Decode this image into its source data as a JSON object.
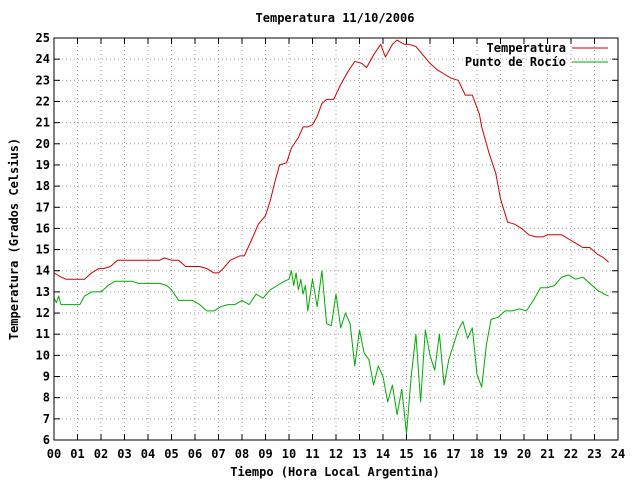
{
  "chart_data": {
    "type": "line",
    "title": "Temperatura 11/10/2006",
    "xlabel": "Tiempo (Hora Local Argentina)",
    "ylabel": "Temperatura (Grados Celsius)",
    "xlim": [
      0,
      24
    ],
    "ylim": [
      6,
      25
    ],
    "xticks": [
      0,
      1,
      2,
      3,
      4,
      5,
      6,
      7,
      8,
      9,
      10,
      11,
      12,
      13,
      14,
      15,
      16,
      17,
      18,
      19,
      20,
      21,
      22,
      23,
      24
    ],
    "xtick_labels": [
      "00",
      "01",
      "02",
      "03",
      "04",
      "05",
      "06",
      "07",
      "08",
      "09",
      "10",
      "11",
      "12",
      "13",
      "14",
      "15",
      "16",
      "17",
      "18",
      "19",
      "20",
      "21",
      "22",
      "23",
      "24"
    ],
    "yticks": [
      6,
      7,
      8,
      9,
      10,
      11,
      12,
      13,
      14,
      15,
      16,
      17,
      18,
      19,
      20,
      21,
      22,
      23,
      24,
      25
    ],
    "ytick_labels": [
      "6",
      "7",
      "8",
      "9",
      "10",
      "11",
      "12",
      "13",
      "14",
      "15",
      "16",
      "17",
      "18",
      "19",
      "20",
      "21",
      "22",
      "23",
      "24",
      "25"
    ],
    "grid": true,
    "legend_position": "top-right",
    "series": [
      {
        "name": "Temperatura",
        "color": "#cc0000",
        "x": [
          0,
          0.15,
          0.3,
          0.5,
          0.8,
          1.1,
          1.3,
          1.6,
          1.9,
          2.1,
          2.4,
          2.7,
          3,
          3.3,
          3.6,
          3.9,
          4.2,
          4.5,
          4.7,
          5,
          5.3,
          5.6,
          5.9,
          6.2,
          6.5,
          6.8,
          7,
          7.2,
          7.5,
          7.9,
          8.1,
          8.3,
          8.5,
          8.7,
          9,
          9.2,
          9.4,
          9.6,
          9.9,
          10.1,
          10.4,
          10.6,
          10.8,
          11,
          11.2,
          11.4,
          11.6,
          11.9,
          12.2,
          12.5,
          12.8,
          13.1,
          13.3,
          13.6,
          13.9,
          14.1,
          14.4,
          14.6,
          14.9,
          15.1,
          15.4,
          15.7,
          16,
          16.3,
          16.6,
          16.9,
          17.2,
          17.5,
          17.8,
          18.1,
          18.2,
          18.5,
          18.8,
          19,
          19.3,
          19.6,
          19.9,
          20.2,
          20.5,
          20.8,
          21,
          21.2,
          21.4,
          21.6,
          21.9,
          22.2,
          22.5,
          22.8,
          23.1,
          23.4,
          23.6
        ],
        "y": [
          13.9,
          13.8,
          13.7,
          13.6,
          13.6,
          13.6,
          13.6,
          13.9,
          14.1,
          14.1,
          14.2,
          14.5,
          14.5,
          14.5,
          14.5,
          14.5,
          14.5,
          14.5,
          14.6,
          14.5,
          14.5,
          14.2,
          14.2,
          14.2,
          14.1,
          13.9,
          13.9,
          14.1,
          14.5,
          14.7,
          14.7,
          15.2,
          15.7,
          16.2,
          16.6,
          17.3,
          18.2,
          19,
          19.1,
          19.8,
          20.3,
          20.8,
          20.8,
          20.9,
          21.3,
          21.9,
          22.1,
          22.1,
          22.8,
          23.4,
          23.9,
          23.8,
          23.6,
          24.2,
          24.7,
          24.1,
          24.7,
          24.9,
          24.7,
          24.7,
          24.6,
          24.2,
          23.8,
          23.5,
          23.3,
          23.1,
          23,
          22.3,
          22.3,
          21.4,
          20.8,
          19.6,
          18.6,
          17.4,
          16.3,
          16.2,
          16,
          15.7,
          15.6,
          15.6,
          15.7,
          15.7,
          15.7,
          15.7,
          15.5,
          15.3,
          15.1,
          15.1,
          14.8,
          14.6,
          14.4
        ]
      },
      {
        "name": "Punto de Rocío",
        "color": "#00aa00",
        "x": [
          0,
          0.1,
          0.2,
          0.3,
          0.5,
          0.8,
          1.1,
          1.3,
          1.6,
          2,
          2.3,
          2.6,
          3,
          3.3,
          3.6,
          3.9,
          4.2,
          4.5,
          4.8,
          5,
          5.3,
          5.6,
          5.9,
          6.2,
          6.5,
          6.8,
          7.1,
          7.4,
          7.7,
          8,
          8.3,
          8.6,
          8.9,
          9.2,
          9.5,
          9.8,
          10,
          10.1,
          10.2,
          10.3,
          10.4,
          10.5,
          10.6,
          10.7,
          10.8,
          11,
          11.2,
          11.4,
          11.6,
          11.8,
          12,
          12.2,
          12.4,
          12.6,
          12.8,
          13,
          13.2,
          13.4,
          13.6,
          13.8,
          14,
          14.2,
          14.4,
          14.6,
          14.8,
          15,
          15.2,
          15.4,
          15.6,
          15.8,
          16,
          16.2,
          16.4,
          16.6,
          16.8,
          17,
          17.2,
          17.4,
          17.6,
          17.8,
          18,
          18.2,
          18.4,
          18.6,
          18.9,
          19.2,
          19.5,
          19.8,
          20.1,
          20.4,
          20.7,
          21,
          21.3,
          21.6,
          21.9,
          22.2,
          22.5,
          22.8,
          23.1,
          23.4,
          23.6
        ],
        "y": [
          12.7,
          12.5,
          12.8,
          12.4,
          12.4,
          12.4,
          12.4,
          12.8,
          13,
          13,
          13.3,
          13.5,
          13.5,
          13.5,
          13.4,
          13.4,
          13.4,
          13.4,
          13.3,
          13.1,
          12.6,
          12.6,
          12.6,
          12.4,
          12.1,
          12.1,
          12.3,
          12.4,
          12.4,
          12.6,
          12.4,
          12.9,
          12.7,
          13.1,
          13.3,
          13.5,
          13.6,
          14,
          13.3,
          13.9,
          13.1,
          13.6,
          12.9,
          13.3,
          12.1,
          13.6,
          12.3,
          14,
          11.5,
          11.4,
          12.9,
          11.3,
          12,
          11.5,
          9.5,
          11.2,
          10.1,
          9.8,
          8.6,
          9.5,
          9,
          7.8,
          8.6,
          7.2,
          8.4,
          6.3,
          9,
          11,
          7.8,
          11.2,
          10,
          9.3,
          11,
          8.6,
          9.8,
          10.5,
          11.2,
          11.6,
          10.8,
          11.3,
          9.1,
          8.5,
          10.5,
          11.7,
          11.8,
          12.1,
          12.1,
          12.2,
          12.1,
          12.6,
          13.2,
          13.2,
          13.3,
          13.7,
          13.8,
          13.6,
          13.7,
          13.4,
          13.1,
          12.9,
          12.8
        ]
      }
    ]
  }
}
